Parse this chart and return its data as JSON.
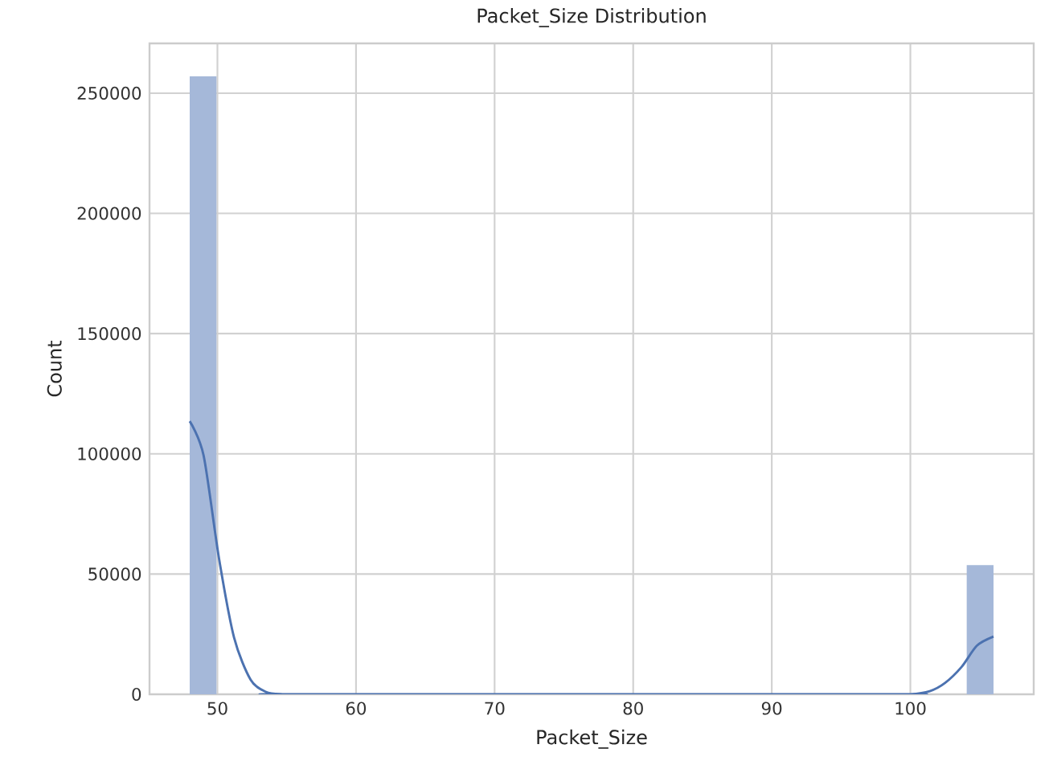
{
  "chart_data": {
    "type": "histogram",
    "title": "Packet_Size Distribution",
    "xlabel": "Packet_Size",
    "ylabel": "Count",
    "bins": [
      48,
      49.9333,
      51.8667,
      53.8,
      55.7333,
      57.6667,
      59.6,
      61.5333,
      63.4667,
      65.4,
      67.3333,
      69.2667,
      71.2,
      73.1333,
      75.0667,
      77,
      78.9333,
      80.8667,
      82.8,
      84.7333,
      86.6667,
      88.6,
      90.5333,
      92.4667,
      94.4,
      96.3333,
      98.2667,
      100.2,
      102.1333,
      104.0667,
      106
    ],
    "values": [
      257000,
      0,
      0,
      0,
      0,
      0,
      0,
      0,
      0,
      0,
      0,
      0,
      0,
      0,
      0,
      0,
      0,
      0,
      0,
      0,
      0,
      0,
      0,
      0,
      0,
      0,
      0,
      0,
      0,
      53700
    ],
    "color": "#a5b8d9",
    "series": [
      {
        "type": "line",
        "color": "#4c72b0",
        "x": [
          48,
          49,
          50.1,
          51.2,
          52.4,
          53.5,
          54.7,
          56,
          98,
          100,
          101.4,
          102.5,
          103.7,
          104.8,
          106
        ],
        "values": [
          113600,
          99400,
          57000,
          23600,
          6000,
          1000,
          0,
          0,
          0,
          0,
          1300,
          4700,
          11400,
          20200,
          24000
        ]
      }
    ],
    "xlim": [
      45.1,
      108.9
    ],
    "ylim": [
      0,
      270700
    ],
    "xticks": [
      50,
      60,
      70,
      80,
      90,
      100
    ],
    "yticks": [
      0,
      50000,
      100000,
      150000,
      200000,
      250000
    ],
    "grid": true
  }
}
